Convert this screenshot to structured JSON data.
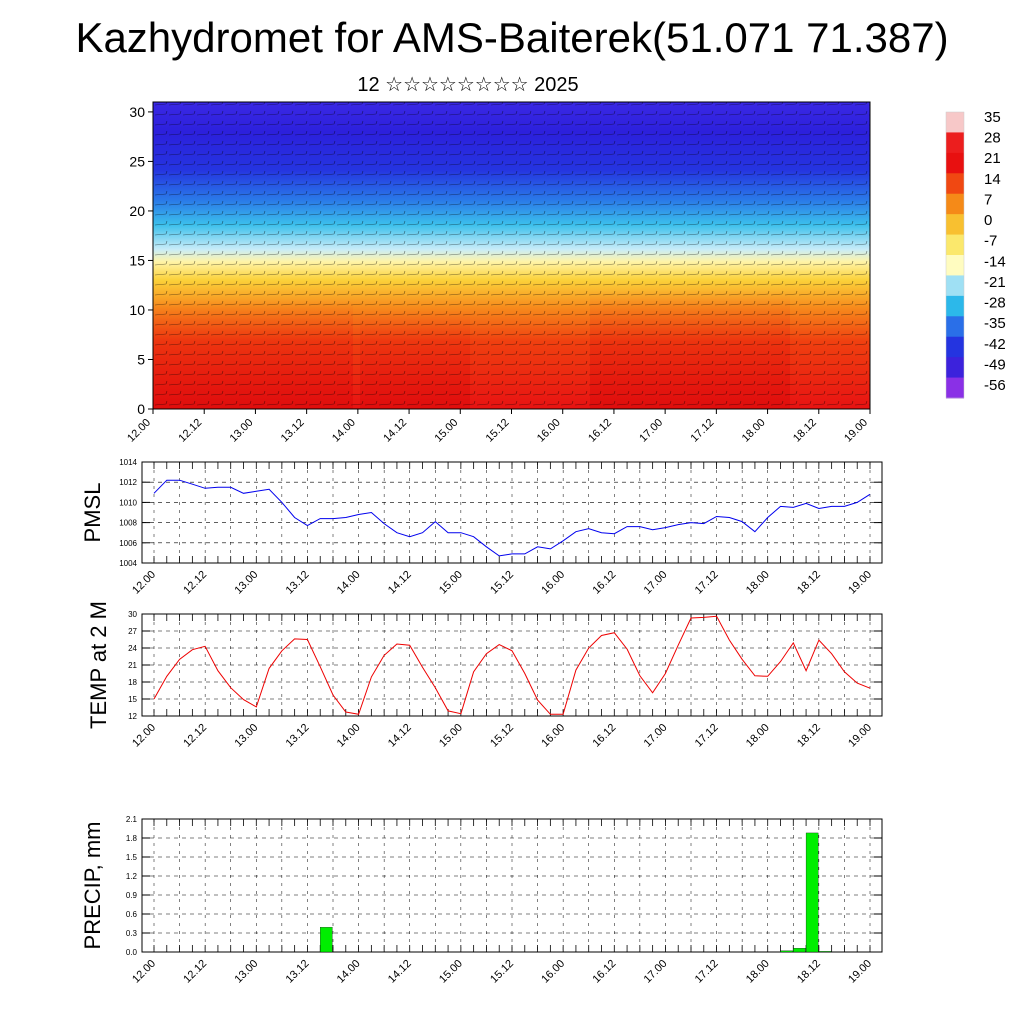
{
  "header": {
    "title": "Kazhydromet for AMS-Baiterek(51.071 71.387)",
    "subtitle": "12 ☆☆☆☆☆☆☆☆ 2025"
  },
  "colors": {
    "pmsl_line": "#0000ee",
    "temp_line": "#ee0000",
    "precip_bar": "#00ee00",
    "grid": "#000000"
  },
  "chart_data": [
    {
      "type": "heatmap",
      "title": "",
      "x_ticks": [
        "12.00",
        "12.12",
        "13.00",
        "13.12",
        "14.00",
        "14.12",
        "15.00",
        "15.12",
        "16.00",
        "16.12",
        "17.00",
        "17.12",
        "18.00",
        "18.12",
        "19.00"
      ],
      "y_ticks": [
        0,
        5,
        10,
        15,
        20,
        25,
        30
      ],
      "ylim": [
        0,
        31
      ],
      "colorbar_labels": [
        "35",
        "28",
        "21",
        "14",
        "7",
        "0",
        "-7",
        "-14",
        "-21",
        "-28",
        "-35",
        "-42",
        "-49",
        "-56"
      ],
      "colorbar_colors": [
        "#f7c8c8",
        "#ec1e1e",
        "#e81010",
        "#f04812",
        "#f58a18",
        "#f8c030",
        "#fbe86c",
        "#fffcc0",
        "#9fe0f4",
        "#2cb8ea",
        "#2a6fe8",
        "#2434e0",
        "#3c22dc",
        "#8a30e6"
      ],
      "overlay": "wind barbs"
    },
    {
      "type": "line",
      "ylabel": "PMSL",
      "ylim": [
        1004,
        1014
      ],
      "yticks": [
        "1004",
        "1006",
        "1008",
        "1010",
        "1012",
        "1014"
      ],
      "x_ticks": [
        "12.00",
        "12.12",
        "13.00",
        "13.12",
        "14.00",
        "14.12",
        "15.00",
        "15.12",
        "16.00",
        "16.12",
        "17.00",
        "17.12",
        "18.00",
        "18.12",
        "19.00"
      ],
      "hours_step": 3,
      "series": [
        {
          "values": [
            1010.9,
            1012.2,
            1012.2,
            1011.8,
            1011.4,
            1011.5,
            1011.5,
            1010.9,
            1011.1,
            1011.3,
            1010.0,
            1008.5,
            1007.7,
            1008.4,
            1008.4,
            1008.5,
            1008.8,
            1009.0,
            1007.9,
            1007.0,
            1006.6,
            1007.0,
            1008.1,
            1007.0,
            1007.0,
            1006.6,
            1005.6,
            1004.7,
            1004.9,
            1004.9,
            1005.6,
            1005.4,
            1006.2,
            1007.1,
            1007.4,
            1007.0,
            1006.9,
            1007.6,
            1007.6,
            1007.3,
            1007.5,
            1007.8,
            1008.0,
            1007.9,
            1008.6,
            1008.5,
            1008.1,
            1007.1,
            1008.5,
            1009.6,
            1009.5,
            1009.9,
            1009.4,
            1009.6,
            1009.6,
            1010.0,
            1010.8
          ]
        }
      ]
    },
    {
      "type": "line",
      "ylabel": "TEMP at 2 M",
      "ylim": [
        12,
        30
      ],
      "yticks": [
        "12",
        "15",
        "18",
        "21",
        "24",
        "27",
        "30"
      ],
      "x_ticks": [
        "12.00",
        "12.12",
        "13.00",
        "13.12",
        "14.00",
        "14.12",
        "15.00",
        "15.12",
        "16.00",
        "16.12",
        "17.00",
        "17.12",
        "18.00",
        "18.12",
        "19.00"
      ],
      "hours_step": 3,
      "series": [
        {
          "values": [
            15.0,
            19.0,
            22.0,
            23.7,
            24.3,
            20.0,
            17.0,
            14.9,
            13.6,
            20.4,
            23.5,
            25.6,
            25.5,
            20.7,
            15.7,
            12.7,
            12.3,
            18.9,
            22.7,
            24.7,
            24.5,
            20.6,
            17.0,
            12.9,
            12.4,
            19.8,
            23.0,
            24.6,
            23.5,
            19.5,
            14.8,
            12.3,
            12.3,
            20.1,
            24.0,
            26.2,
            26.7,
            23.8,
            19.1,
            16.1,
            19.5,
            24.5,
            29.3,
            29.4,
            29.6,
            25.4,
            22.0,
            19.1,
            19.0,
            21.6,
            24.9,
            20.0,
            25.4,
            23.0,
            19.8,
            17.8,
            16.9
          ]
        }
      ]
    },
    {
      "type": "bar",
      "ylabel": "PRECIP, mm",
      "ylim": [
        0,
        2.1
      ],
      "yticks": [
        "0.0",
        "0.3",
        "0.6",
        "0.9",
        "1.2",
        "1.5",
        "1.8",
        "2.1"
      ],
      "x_ticks": [
        "12.00",
        "12.12",
        "13.00",
        "13.12",
        "14.00",
        "14.12",
        "15.00",
        "15.12",
        "16.00",
        "16.12",
        "17.00",
        "17.12",
        "18.00",
        "18.12",
        "19.00"
      ],
      "hours_step": 3,
      "series": [
        {
          "values": [
            0,
            0,
            0,
            0,
            0,
            0,
            0,
            0,
            0,
            0,
            0,
            0,
            0,
            0.39,
            0,
            0,
            0,
            0,
            0,
            0,
            0,
            0,
            0,
            0,
            0,
            0,
            0,
            0,
            0,
            0,
            0,
            0,
            0,
            0,
            0,
            0,
            0,
            0,
            0,
            0,
            0,
            0,
            0,
            0,
            0,
            0,
            0,
            0,
            0,
            0.02,
            0.06,
            1.88,
            0.01,
            0,
            0,
            0
          ]
        }
      ]
    }
  ]
}
